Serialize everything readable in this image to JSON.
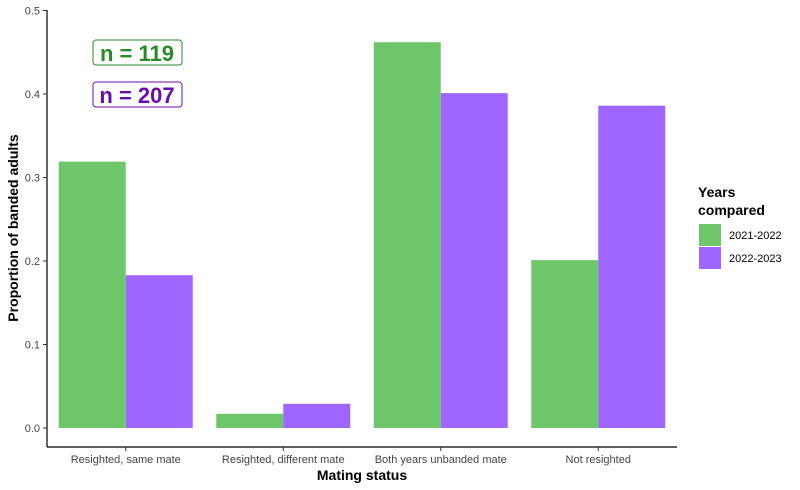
{
  "chart_data": {
    "type": "bar",
    "xlabel": "Mating status",
    "ylabel": "Proportion of banded adults",
    "categories": [
      "Resighted, same mate",
      "Resighted, different mate",
      "Both years unbanded mate",
      "Not resighted"
    ],
    "series": [
      {
        "name": "2021-2022",
        "color": "#6dc76a",
        "values": [
          0.319,
          0.017,
          0.462,
          0.201
        ]
      },
      {
        "name": "2022-2023",
        "color": "#9e66ff",
        "values": [
          0.183,
          0.029,
          0.401,
          0.386
        ]
      }
    ],
    "ylim": [
      0,
      0.5
    ],
    "yticks": [
      "0.0",
      "0.1",
      "0.2",
      "0.3",
      "0.4",
      "0.5"
    ],
    "grid": false,
    "legend": {
      "title_line1": "Years",
      "title_line2": "compared",
      "placement": "right"
    },
    "annotations": [
      {
        "text": "n = 119",
        "color": "#2a8a2a"
      },
      {
        "text": "n = 207",
        "color": "#6a0dad"
      }
    ]
  }
}
